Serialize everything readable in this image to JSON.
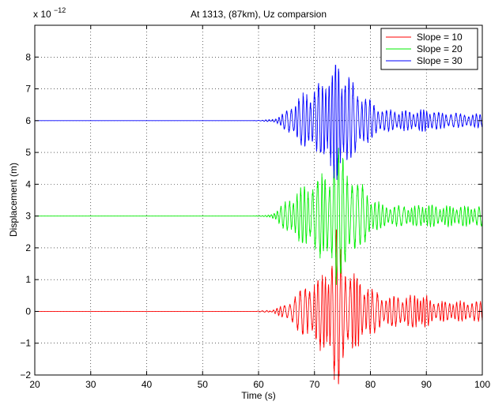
{
  "chart_data": {
    "type": "line",
    "title": "At 1313, (87km), Uz comparsion",
    "xlabel": "Time (s)",
    "ylabel": "Displacement (m)",
    "y_multiplier_label": "x 10",
    "y_multiplier_exponent": "−12",
    "xlim": [
      20,
      100
    ],
    "ylim": [
      -2,
      9
    ],
    "x_ticks": [
      20,
      30,
      40,
      50,
      60,
      70,
      80,
      90,
      100
    ],
    "y_ticks": [
      -2,
      -1,
      0,
      1,
      2,
      3,
      4,
      5,
      6,
      7,
      8
    ],
    "grid": true,
    "legend_position": "top-right",
    "series": [
      {
        "name": "Slope = 10",
        "color": "#ff0000",
        "baseline": 0,
        "onset_time": 62,
        "x": [
          20,
          62,
          64,
          66,
          68,
          69,
          70,
          71,
          72,
          73,
          74,
          75,
          76,
          77,
          78,
          80,
          82,
          84,
          86,
          88,
          90,
          92,
          94,
          96,
          98,
          100
        ],
        "y_envelope": [
          0,
          0,
          0.15,
          0.4,
          0.7,
          0.8,
          1.0,
          1.1,
          1.2,
          1.6,
          2.5,
          1.6,
          1.4,
          1.2,
          1.0,
          0.7,
          0.5,
          0.45,
          0.45,
          0.5,
          0.45,
          0.3,
          0.3,
          0.3,
          0.3,
          0.3
        ]
      },
      {
        "name": "Slope = 20",
        "color": "#00ee00",
        "baseline": 3,
        "onset_time": 62,
        "x": [
          20,
          62,
          64,
          66,
          68,
          69,
          70,
          71,
          72,
          73,
          74,
          75,
          76,
          77,
          78,
          80,
          82,
          84,
          86,
          88,
          90,
          92,
          94,
          96,
          98,
          100
        ],
        "y_envelope": [
          0,
          0,
          0.3,
          0.6,
          0.9,
          1.0,
          1.1,
          1.2,
          1.3,
          1.6,
          2.2,
          1.8,
          1.5,
          1.2,
          1.0,
          0.6,
          0.35,
          0.3,
          0.3,
          0.3,
          0.35,
          0.3,
          0.3,
          0.3,
          0.3,
          0.3
        ]
      },
      {
        "name": "Slope = 30",
        "color": "#0000ff",
        "baseline": 6,
        "onset_time": 62,
        "x": [
          20,
          62,
          64,
          66,
          68,
          69,
          70,
          71,
          72,
          73,
          74,
          75,
          76,
          77,
          78,
          80,
          82,
          84,
          86,
          88,
          90,
          92,
          94,
          96,
          98,
          100
        ],
        "y_envelope": [
          0,
          0,
          0.15,
          0.5,
          0.8,
          0.9,
          1.0,
          1.1,
          1.3,
          1.6,
          1.9,
          1.5,
          1.3,
          1.1,
          0.9,
          0.6,
          0.35,
          0.3,
          0.3,
          0.3,
          0.35,
          0.25,
          0.25,
          0.2,
          0.2,
          0.2
        ]
      }
    ]
  }
}
